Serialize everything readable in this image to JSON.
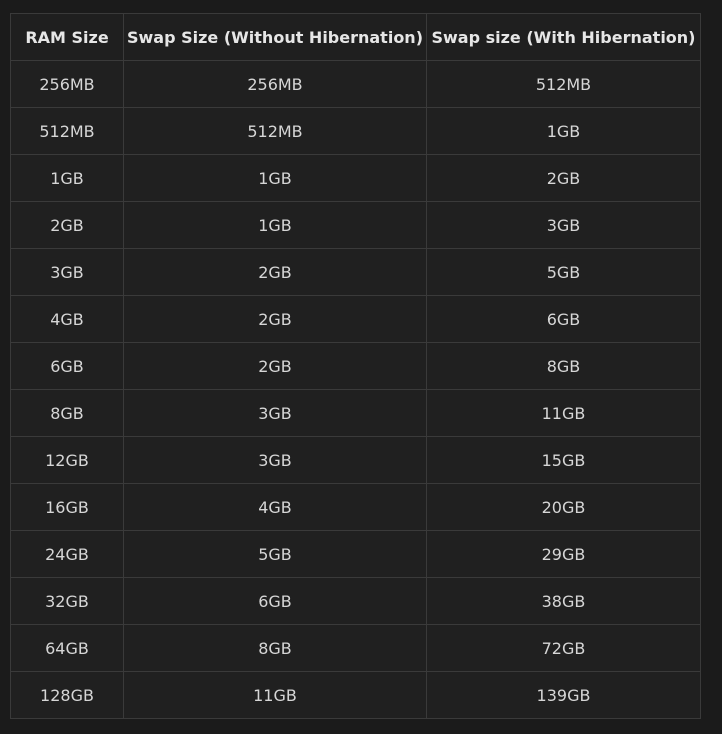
{
  "table": {
    "headers": [
      "RAM Size",
      "Swap Size (Without Hibernation)",
      "Swap size (With Hibernation)"
    ],
    "rows": [
      [
        "256MB",
        "256MB",
        "512MB"
      ],
      [
        "512MB",
        "512MB",
        "1GB"
      ],
      [
        "1GB",
        "1GB",
        "2GB"
      ],
      [
        "2GB",
        "1GB",
        "3GB"
      ],
      [
        "3GB",
        "2GB",
        "5GB"
      ],
      [
        "4GB",
        "2GB",
        "6GB"
      ],
      [
        "6GB",
        "2GB",
        "8GB"
      ],
      [
        "8GB",
        "3GB",
        "11GB"
      ],
      [
        "12GB",
        "3GB",
        "15GB"
      ],
      [
        "16GB",
        "4GB",
        "20GB"
      ],
      [
        "24GB",
        "5GB",
        "29GB"
      ],
      [
        "32GB",
        "6GB",
        "38GB"
      ],
      [
        "64GB",
        "8GB",
        "72GB"
      ],
      [
        "128GB",
        "11GB",
        "139GB"
      ]
    ]
  }
}
